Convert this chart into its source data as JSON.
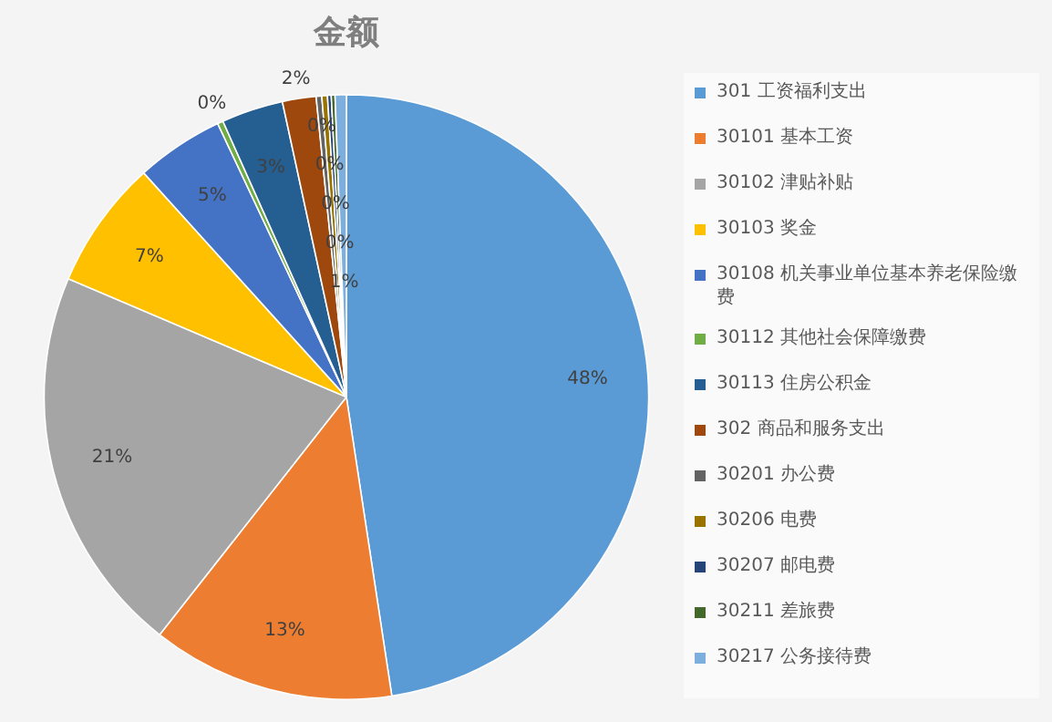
{
  "chart_data": {
    "type": "pie",
    "title": "金额",
    "legend": "right",
    "categories": [
      "301 工资福利支出",
      "30101  基本工资",
      "30102  津贴补贴",
      "30103  奖金",
      "30108  机关事业单位基本养老保险缴费",
      "30112  其他社会保障缴费",
      "30113  住房公积金",
      "302 商品和服务支出",
      "30201  办公费",
      "30206  电费",
      "30207  邮电费",
      "30211  差旅费",
      "30217  公务接待费"
    ],
    "values": [
      47.6,
      13.0,
      20.8,
      6.9,
      4.7,
      0.3,
      3.3,
      1.8,
      0.3,
      0.3,
      0.2,
      0.2,
      0.6
    ],
    "value_labels": [
      "48%",
      "13%",
      "21%",
      "7%",
      "5%",
      "0%",
      "3%",
      "2%",
      "0%",
      "0%",
      "0%",
      "0%",
      "1%"
    ],
    "colors": [
      "#5b9bd5",
      "#ed7d31",
      "#a5a5a5",
      "#ffc000",
      "#4472c4",
      "#70ad47",
      "#255e91",
      "#9e480e",
      "#636363",
      "#997300",
      "#264478",
      "#43682b",
      "#7cafdd"
    ]
  }
}
